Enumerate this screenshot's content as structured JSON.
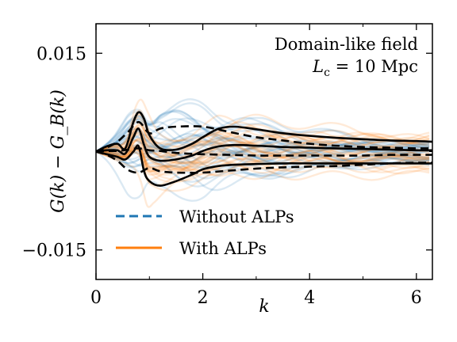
{
  "chart_data": {
    "type": "line",
    "title": "",
    "xlabel": "k",
    "ylabel": "G(k) − G_B(k)",
    "xlim": [
      0,
      6.3
    ],
    "ylim": [
      -0.0195,
      0.0195
    ],
    "xticks": [
      0,
      2,
      4,
      6
    ],
    "xtick_labels": [
      "0",
      "2",
      "4",
      "6"
    ],
    "yticks": [
      -0.015,
      0.015
    ],
    "ytick_labels": [
      "−0.015",
      "0.015"
    ],
    "grid": false,
    "legend_placement": "lower-left",
    "annotation": {
      "line1": "Domain-like field",
      "line2_symbol": "L",
      "line2_subscript": "c",
      "line2_rest": " = 10 Mpc"
    },
    "colors": {
      "without": "#1f77b4",
      "with": "#ff7f0e",
      "summary": "#000000"
    },
    "series": [
      {
        "name": "Without ALPs",
        "style": "dashed",
        "realizations": "many faint blue curves",
        "summary_curves": [
          {
            "x": [
              0,
              0.2,
              0.4,
              0.6,
              0.8,
              1.0,
              1.2,
              1.5,
              2.0,
              2.5,
              3.0,
              3.5,
              4.0,
              4.5,
              5.0,
              5.5,
              6.0,
              6.3
            ],
            "y": [
              0,
              0.0006,
              0.0015,
              0.003,
              0.0045,
              0.0028,
              0.0035,
              0.0038,
              0.0038,
              0.003,
              0.0022,
              0.0017,
              0.0012,
              0.0009,
              0.0007,
              0.0006,
              0.0005,
              0.0005
            ]
          },
          {
            "x": [
              0,
              0.2,
              0.4,
              0.6,
              0.8,
              1.0,
              1.2,
              1.5,
              2.0,
              2.5,
              3.0,
              3.5,
              4.0,
              4.5,
              5.0,
              5.5,
              6.0,
              6.3
            ],
            "y": [
              0,
              0.0001,
              0.0001,
              0.0003,
              0.0005,
              0.0002,
              0.0001,
              -0.0002,
              -0.0004,
              -0.0005,
              -0.0006,
              -0.0006,
              -0.0006,
              -0.0006,
              -0.0006,
              -0.0005,
              -0.0005,
              -0.0005
            ]
          },
          {
            "x": [
              0,
              0.2,
              0.4,
              0.6,
              0.8,
              1.0,
              1.2,
              1.5,
              2.0,
              2.5,
              3.0,
              3.5,
              4.0,
              4.5,
              5.0,
              5.5,
              6.0,
              6.3
            ],
            "y": [
              0,
              -0.0005,
              -0.0014,
              -0.0028,
              -0.0032,
              -0.0025,
              -0.003,
              -0.0032,
              -0.0032,
              -0.0029,
              -0.0026,
              -0.0024,
              -0.0023,
              -0.0022,
              -0.002,
              -0.0018,
              -0.0017,
              -0.0017
            ]
          }
        ]
      },
      {
        "name": "With ALPs",
        "style": "solid",
        "realizations": "many faint orange curves",
        "summary_curves": [
          {
            "x": [
              0,
              0.2,
              0.4,
              0.55,
              0.7,
              0.8,
              0.9,
              1.0,
              1.2,
              1.5,
              1.8,
              2.0,
              2.3,
              2.6,
              3.0,
              3.5,
              4.0,
              4.5,
              5.0,
              5.5,
              6.0,
              6.3
            ],
            "y": [
              0,
              0.0008,
              0.0012,
              0.0005,
              0.0045,
              0.006,
              0.005,
              0.0025,
              0.0005,
              0.0003,
              0.0012,
              0.0022,
              0.0035,
              0.0038,
              0.0034,
              0.0028,
              0.0024,
              0.0021,
              0.0019,
              0.0017,
              0.0016,
              0.0015
            ]
          },
          {
            "x": [
              0,
              0.2,
              0.4,
              0.55,
              0.7,
              0.8,
              0.9,
              1.0,
              1.2,
              1.5,
              1.8,
              2.0,
              2.3,
              2.6,
              3.0,
              3.5,
              4.0,
              4.5,
              5.0,
              5.5,
              6.0,
              6.3
            ],
            "y": [
              0,
              0.0002,
              0.0002,
              -0.0003,
              0.0022,
              0.0035,
              0.001,
              -0.0008,
              -0.0014,
              -0.0012,
              -0.0006,
              0.0001,
              0.0008,
              0.001,
              0.0009,
              0.0007,
              0.0006,
              0.0005,
              0.0004,
              0.0003,
              0.0002,
              0.0002
            ]
          },
          {
            "x": [
              0,
              0.2,
              0.4,
              0.55,
              0.7,
              0.8,
              0.9,
              1.0,
              1.2,
              1.5,
              1.8,
              2.0,
              2.3,
              2.6,
              3.0,
              3.5,
              4.0,
              4.5,
              5.0,
              5.5,
              6.0,
              6.3
            ],
            "y": [
              0,
              -0.0004,
              -0.0008,
              -0.0012,
              0.0,
              0.0008,
              -0.003,
              -0.0045,
              -0.0052,
              -0.0045,
              -0.0035,
              -0.0027,
              -0.0022,
              -0.002,
              -0.0019,
              -0.0018,
              -0.0018,
              -0.0018,
              -0.0018,
              -0.0018,
              -0.0018,
              -0.0018
            ]
          }
        ]
      }
    ]
  }
}
